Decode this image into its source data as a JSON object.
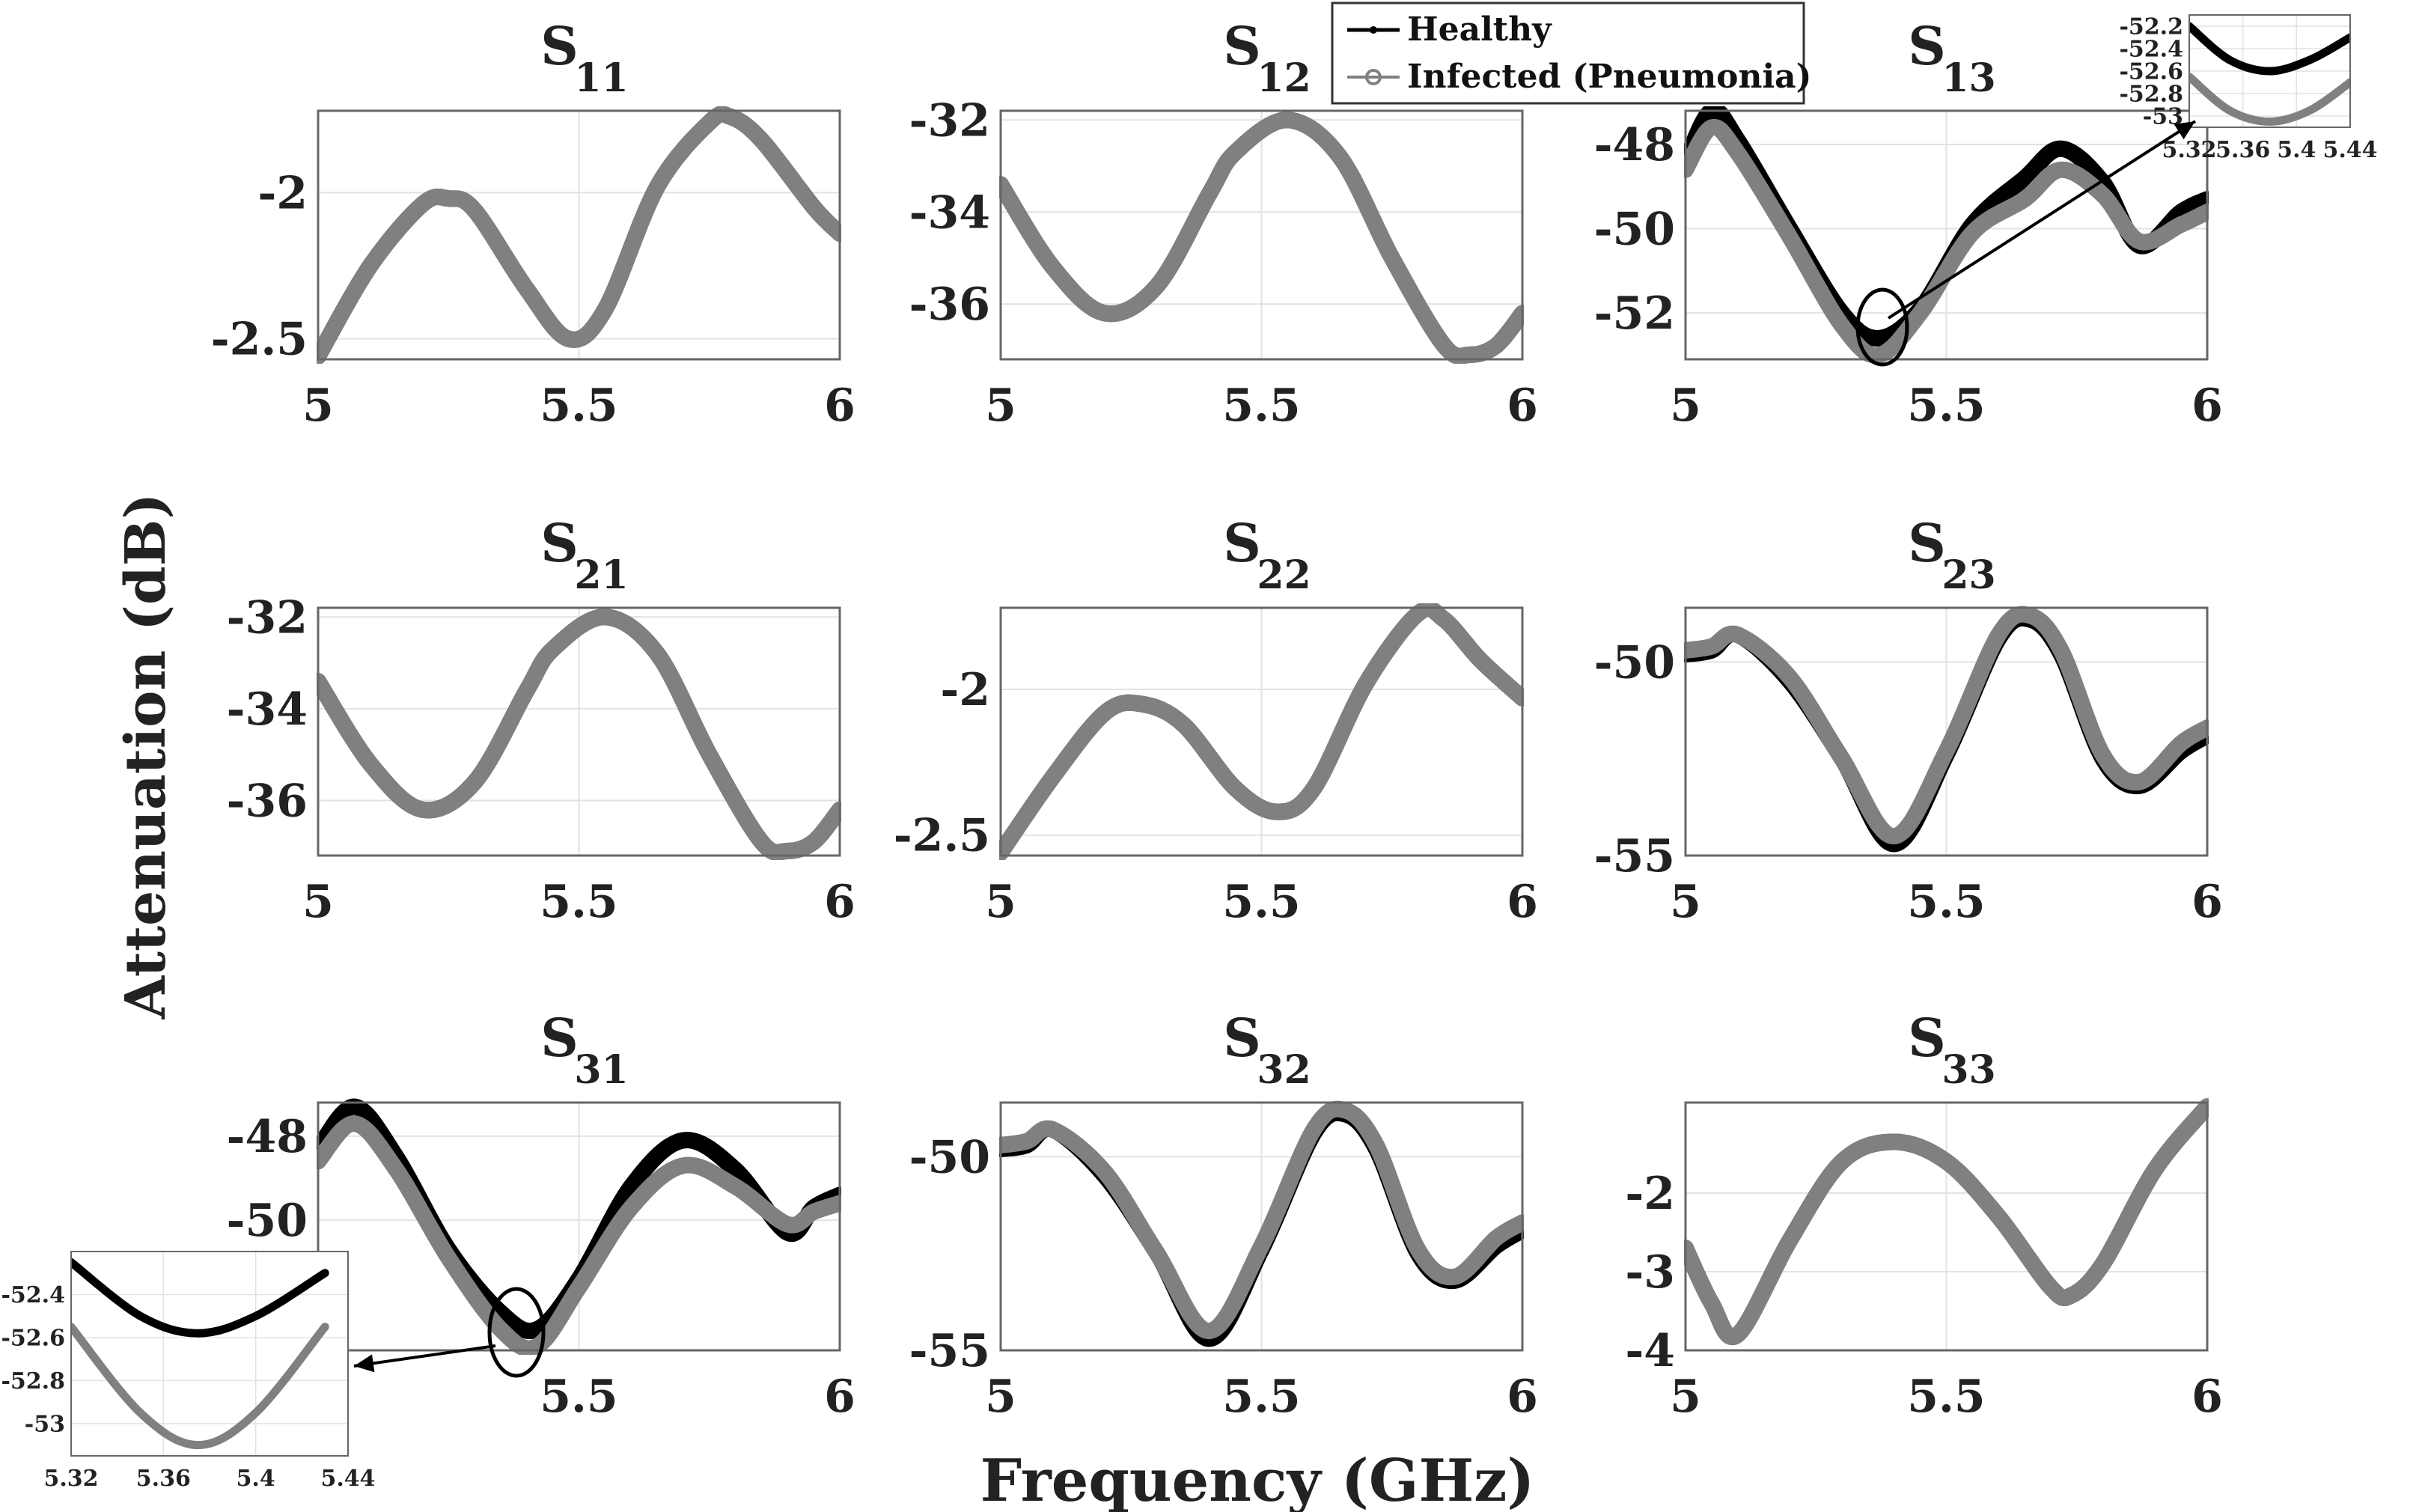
{
  "figure": {
    "xlabel": "Frequency (GHz)",
    "ylabel": "Attenuation (dB)",
    "legend": {
      "healthy": "Healthy",
      "infected": "Infected (Pneumonia)"
    },
    "colors": {
      "healthy": "#000000",
      "infected": "#808080",
      "grid": "#e2e2e2",
      "axes": "#666666"
    }
  },
  "chart_data": [
    {
      "type": "line",
      "id": "S11",
      "title_main": "S",
      "title_sub": "11",
      "xlim": [
        5,
        6
      ],
      "ylim": [
        -2.57,
        -1.72
      ],
      "xticks": [
        5,
        5.5,
        6
      ],
      "xtick_labels": [
        "5",
        "5.5",
        "6"
      ],
      "yticks": [
        -2,
        -2.5
      ],
      "ytick_labels": [
        "-2",
        "-2.5"
      ],
      "x": [
        5,
        5.1,
        5.2,
        5.25,
        5.3,
        5.4,
        5.48,
        5.55,
        5.65,
        5.75,
        5.79,
        5.85,
        5.95,
        6
      ],
      "series": [
        {
          "name": "Healthy",
          "values": [
            -2.56,
            -2.25,
            -2.04,
            -2.02,
            -2.06,
            -2.33,
            -2.5,
            -2.4,
            -1.98,
            -1.76,
            -1.74,
            -1.82,
            -2.05,
            -2.14
          ]
        },
        {
          "name": "Infected (Pneumonia)",
          "values": [
            -2.56,
            -2.25,
            -2.04,
            -2.02,
            -2.06,
            -2.33,
            -2.5,
            -2.4,
            -1.98,
            -1.76,
            -1.74,
            -1.82,
            -2.05,
            -2.14
          ]
        }
      ]
    },
    {
      "type": "line",
      "id": "S12",
      "title_main": "S",
      "title_sub": "12",
      "xlim": [
        5,
        6
      ],
      "ylim": [
        -37.2,
        -31.8
      ],
      "xticks": [
        5,
        5.5,
        6
      ],
      "xtick_labels": [
        "5",
        "5.5",
        "6"
      ],
      "yticks": [
        -32,
        -34,
        -36
      ],
      "ytick_labels": [
        "-32",
        "-34",
        "-36"
      ],
      "x": [
        5,
        5.1,
        5.2,
        5.3,
        5.4,
        5.45,
        5.55,
        5.65,
        5.75,
        5.85,
        5.9,
        5.95,
        6
      ],
      "series": [
        {
          "name": "Healthy",
          "values": [
            -33.4,
            -35.2,
            -36.2,
            -35.6,
            -33.6,
            -32.7,
            -32,
            -32.8,
            -35,
            -36.9,
            -37.1,
            -36.9,
            -36.2
          ]
        },
        {
          "name": "Infected (Pneumonia)",
          "values": [
            -33.4,
            -35.2,
            -36.2,
            -35.6,
            -33.6,
            -32.7,
            -32,
            -32.8,
            -35,
            -36.9,
            -37.1,
            -36.9,
            -36.2
          ]
        }
      ]
    },
    {
      "type": "line",
      "id": "S13",
      "title_main": "S",
      "title_sub": "13",
      "xlim": [
        5,
        6
      ],
      "ylim": [
        -53.1,
        -47.2
      ],
      "xticks": [
        5,
        5.5,
        6
      ],
      "xtick_labels": [
        "5",
        "5.5",
        "6"
      ],
      "yticks": [
        -48,
        -50,
        -52
      ],
      "ytick_labels": [
        "-48",
        "-50",
        "-52"
      ],
      "x": [
        5,
        5.05,
        5.1,
        5.2,
        5.3,
        5.37,
        5.45,
        5.55,
        5.65,
        5.72,
        5.8,
        5.87,
        5.95,
        6
      ],
      "series": [
        {
          "name": "Healthy",
          "values": [
            -48.4,
            -47.2,
            -47.9,
            -50,
            -52,
            -52.6,
            -51.9,
            -49.9,
            -48.8,
            -48.1,
            -48.9,
            -50.4,
            -49.6,
            -49.3
          ]
        },
        {
          "name": "Infected (Pneumonia)",
          "values": [
            -48.6,
            -47.6,
            -48.2,
            -50.2,
            -52.3,
            -53,
            -52,
            -50.1,
            -49.3,
            -48.6,
            -49.2,
            -50.3,
            -49.9,
            -49.6
          ]
        }
      ],
      "inset": {
        "xlim": [
          5.32,
          5.44
        ],
        "ylim": [
          -53.1,
          -52.1
        ],
        "xticks": [
          5.32,
          5.36,
          5.4,
          5.44
        ],
        "xtick_labels": [
          "5.32",
          "5.36",
          "5.4",
          "5.44"
        ],
        "yticks": [
          -52.2,
          -52.4,
          -52.6,
          -52.8,
          -53
        ],
        "ytick_labels": [
          "-52.2",
          "-52.4",
          "-52.6",
          "-52.8",
          "-53"
        ],
        "x": [
          5.32,
          5.35,
          5.38,
          5.41,
          5.44
        ],
        "healthy": [
          -52.2,
          -52.5,
          -52.6,
          -52.5,
          -52.3
        ],
        "infected": [
          -52.65,
          -52.95,
          -53.05,
          -52.95,
          -52.7
        ]
      }
    },
    {
      "type": "line",
      "id": "S21",
      "title_main": "S",
      "title_sub": "21",
      "xlim": [
        5,
        6
      ],
      "ylim": [
        -37.2,
        -31.8
      ],
      "xticks": [
        5,
        5.5,
        6
      ],
      "xtick_labels": [
        "5",
        "5.5",
        "6"
      ],
      "yticks": [
        -32,
        -34,
        -36
      ],
      "ytick_labels": [
        "-32",
        "-34",
        "-36"
      ],
      "x": [
        5,
        5.1,
        5.2,
        5.3,
        5.4,
        5.45,
        5.55,
        5.65,
        5.75,
        5.85,
        5.9,
        5.95,
        6
      ],
      "series": [
        {
          "name": "Healthy",
          "values": [
            -33.4,
            -35.2,
            -36.2,
            -35.6,
            -33.6,
            -32.7,
            -32,
            -32.8,
            -35,
            -36.9,
            -37.1,
            -36.9,
            -36.2
          ]
        },
        {
          "name": "Infected (Pneumonia)",
          "values": [
            -33.4,
            -35.2,
            -36.2,
            -35.6,
            -33.6,
            -32.7,
            -32,
            -32.8,
            -35,
            -36.9,
            -37.1,
            -36.9,
            -36.2
          ]
        }
      ]
    },
    {
      "type": "line",
      "id": "S22",
      "title_main": "S",
      "title_sub": "22",
      "xlim": [
        5,
        6
      ],
      "ylim": [
        -2.57,
        -1.72
      ],
      "xticks": [
        5,
        5.5,
        6
      ],
      "xtick_labels": [
        "5",
        "5.5",
        "6"
      ],
      "yticks": [
        -2,
        -2.5
      ],
      "ytick_labels": [
        "-2",
        "-2.5"
      ],
      "x": [
        5,
        5.1,
        5.2,
        5.27,
        5.35,
        5.45,
        5.53,
        5.6,
        5.7,
        5.8,
        5.85,
        5.92,
        6
      ],
      "series": [
        {
          "name": "Healthy",
          "values": [
            -2.56,
            -2.3,
            -2.08,
            -2.05,
            -2.12,
            -2.34,
            -2.42,
            -2.34,
            -1.98,
            -1.74,
            -1.76,
            -1.9,
            -2.03
          ]
        },
        {
          "name": "Infected (Pneumonia)",
          "values": [
            -2.56,
            -2.3,
            -2.08,
            -2.05,
            -2.12,
            -2.34,
            -2.42,
            -2.34,
            -1.98,
            -1.74,
            -1.76,
            -1.9,
            -2.03
          ]
        }
      ]
    },
    {
      "type": "line",
      "id": "S23",
      "title_main": "S",
      "title_sub": "23",
      "xlim": [
        5,
        6
      ],
      "ylim": [
        -55,
        -48.6
      ],
      "xticks": [
        5,
        5.5,
        6
      ],
      "xtick_labels": [
        "5",
        "5.5",
        "6"
      ],
      "yticks": [
        -50,
        -55
      ],
      "ytick_labels": [
        "-50",
        "-55"
      ],
      "x": [
        5,
        5.05,
        5.1,
        5.2,
        5.3,
        5.4,
        5.5,
        5.6,
        5.66,
        5.72,
        5.8,
        5.87,
        5.95,
        6
      ],
      "series": [
        {
          "name": "Healthy",
          "values": [
            -49.8,
            -49.7,
            -49.3,
            -50.5,
            -52.5,
            -54.7,
            -52.4,
            -49.4,
            -48.9,
            -49.8,
            -52.5,
            -53.2,
            -52.3,
            -51.9
          ]
        },
        {
          "name": "Infected (Pneumonia)",
          "values": [
            -49.7,
            -49.6,
            -49.3,
            -50.4,
            -52.5,
            -54.5,
            -52.3,
            -49.3,
            -48.8,
            -49.7,
            -52.4,
            -53.1,
            -52.1,
            -51.7
          ]
        }
      ]
    },
    {
      "type": "line",
      "id": "S31",
      "title_main": "S",
      "title_sub": "31",
      "xlim": [
        5,
        6
      ],
      "ylim": [
        -53.1,
        -47.2
      ],
      "xticks": [
        5.5,
        6
      ],
      "xtick_labels": [
        "5.5",
        "6"
      ],
      "yticks": [
        -48,
        -50
      ],
      "ytick_labels": [
        "-48",
        "-50"
      ],
      "x": [
        5,
        5.07,
        5.15,
        5.25,
        5.35,
        5.42,
        5.5,
        5.6,
        5.7,
        5.8,
        5.9,
        5.95,
        6
      ],
      "series": [
        {
          "name": "Healthy",
          "values": [
            -48.3,
            -47.3,
            -48.5,
            -50.7,
            -52.2,
            -52.6,
            -51.4,
            -49.2,
            -48.1,
            -48.8,
            -50.3,
            -49.7,
            -49.4
          ]
        },
        {
          "name": "Infected (Pneumonia)",
          "values": [
            -48.6,
            -47.7,
            -48.8,
            -50.9,
            -52.6,
            -53,
            -51.6,
            -49.7,
            -48.7,
            -49.2,
            -50.1,
            -49.8,
            -49.6
          ]
        }
      ],
      "inset": {
        "xlim": [
          5.32,
          5.44
        ],
        "ylim": [
          -53.15,
          -52.2
        ],
        "xticks": [
          5.32,
          5.36,
          5.4,
          5.44
        ],
        "xtick_labels": [
          "5.32",
          "5.36",
          "5.4",
          "5.44"
        ],
        "yticks": [
          -52.4,
          -52.6,
          -52.8,
          -53
        ],
        "ytick_labels": [
          "-52.4",
          "-52.6",
          "-52.8",
          "-53"
        ],
        "x": [
          5.32,
          5.35,
          5.375,
          5.4,
          5.43
        ],
        "healthy": [
          -52.25,
          -52.5,
          -52.58,
          -52.5,
          -52.3
        ],
        "infected": [
          -52.55,
          -52.95,
          -53.1,
          -52.95,
          -52.55
        ]
      }
    },
    {
      "type": "line",
      "id": "S32",
      "title_main": "S",
      "title_sub": "32",
      "xlim": [
        5,
        6
      ],
      "ylim": [
        -55,
        -48.6
      ],
      "xticks": [
        5,
        5.5,
        6
      ],
      "xtick_labels": [
        "5",
        "5.5",
        "6"
      ],
      "yticks": [
        -50,
        -55
      ],
      "ytick_labels": [
        "-50",
        "-55"
      ],
      "x": [
        5,
        5.05,
        5.1,
        5.2,
        5.3,
        5.4,
        5.5,
        5.6,
        5.66,
        5.72,
        5.8,
        5.87,
        5.95,
        6
      ],
      "series": [
        {
          "name": "Healthy",
          "values": [
            -49.8,
            -49.7,
            -49.3,
            -50.5,
            -52.5,
            -54.7,
            -52.4,
            -49.4,
            -48.9,
            -49.8,
            -52.5,
            -53.2,
            -52.3,
            -51.9
          ]
        },
        {
          "name": "Infected (Pneumonia)",
          "values": [
            -49.7,
            -49.6,
            -49.3,
            -50.4,
            -52.5,
            -54.5,
            -52.3,
            -49.3,
            -48.8,
            -49.7,
            -52.4,
            -53.1,
            -52.1,
            -51.7
          ]
        }
      ]
    },
    {
      "type": "line",
      "id": "S33",
      "title_main": "S",
      "title_sub": "33",
      "xlim": [
        5,
        6
      ],
      "ylim": [
        -4,
        -0.85
      ],
      "xticks": [
        5,
        5.5,
        6
      ],
      "xtick_labels": [
        "5",
        "5.5",
        "6"
      ],
      "yticks": [
        -2,
        -3,
        -4
      ],
      "ytick_labels": [
        "-2",
        "-3",
        "-4"
      ],
      "x": [
        5,
        5.05,
        5.1,
        5.2,
        5.3,
        5.4,
        5.5,
        5.6,
        5.7,
        5.74,
        5.8,
        5.9,
        6
      ],
      "series": [
        {
          "name": "Healthy",
          "values": [
            -2.7,
            -3.4,
            -3.8,
            -2.6,
            -1.6,
            -1.35,
            -1.6,
            -2.3,
            -3.2,
            -3.3,
            -2.9,
            -1.7,
            -0.9
          ]
        },
        {
          "name": "Infected (Pneumonia)",
          "values": [
            -2.7,
            -3.4,
            -3.8,
            -2.6,
            -1.6,
            -1.35,
            -1.6,
            -2.3,
            -3.2,
            -3.3,
            -2.9,
            -1.7,
            -0.9
          ]
        }
      ]
    }
  ]
}
